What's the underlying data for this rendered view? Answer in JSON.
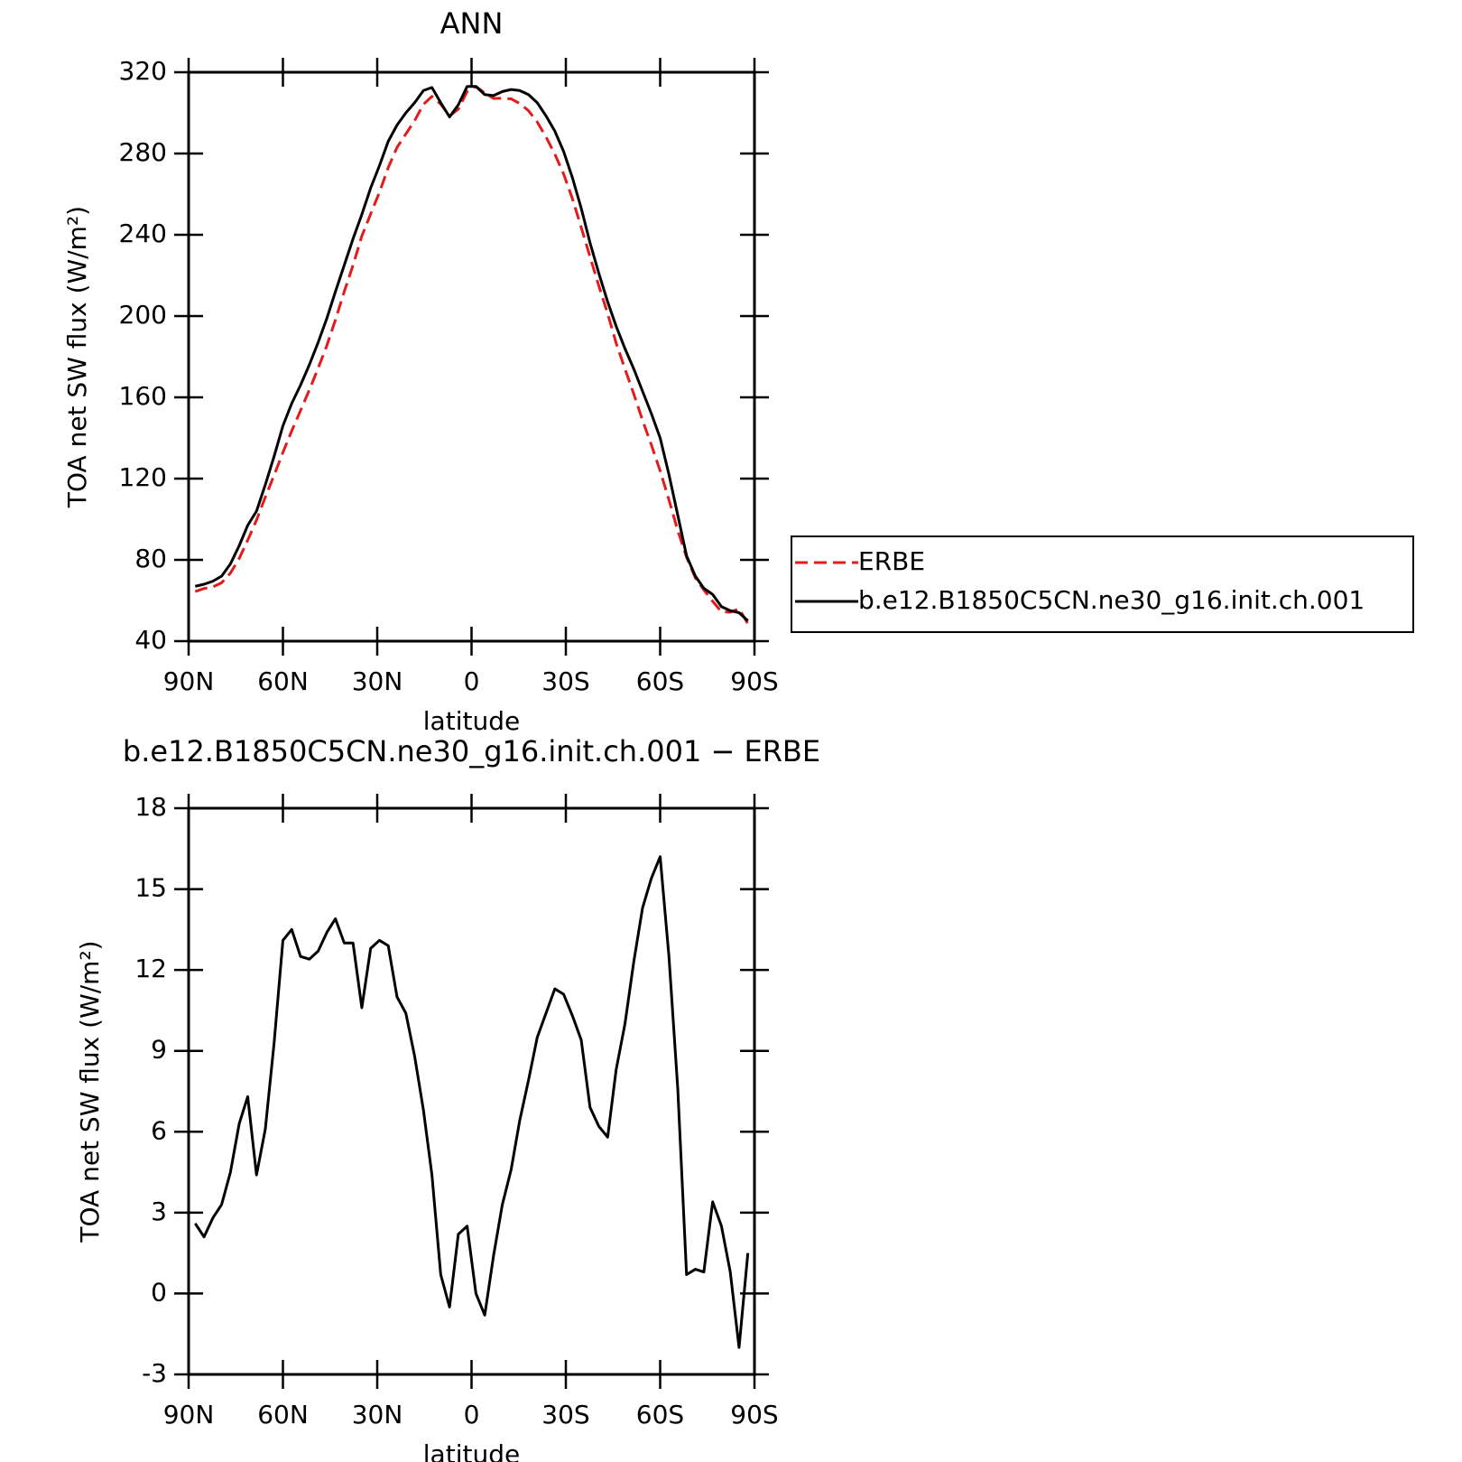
{
  "chart_data": [
    {
      "type": "line",
      "title": "ANN",
      "xlabel": "latitude",
      "ylabel": "TOA net SW flux (W/m²)",
      "x": [
        87.9,
        85.1,
        82.3,
        79.5,
        76.7,
        73.9,
        71.2,
        68.4,
        65.6,
        62.8,
        60.0,
        57.2,
        54.4,
        51.6,
        48.8,
        46.0,
        43.3,
        40.5,
        37.7,
        34.9,
        32.1,
        29.3,
        26.5,
        23.7,
        20.9,
        18.1,
        15.3,
        12.6,
        9.8,
        7.0,
        4.2,
        1.4,
        -1.4,
        -4.2,
        -7.0,
        -9.8,
        -12.6,
        -15.3,
        -18.1,
        -20.9,
        -23.7,
        -26.5,
        -29.3,
        -32.1,
        -34.9,
        -37.7,
        -40.5,
        -43.3,
        -46.0,
        -48.8,
        -51.6,
        -54.4,
        -57.2,
        -60.0,
        -62.8,
        -65.6,
        -68.4,
        -71.2,
        -73.9,
        -76.7,
        -79.5,
        -82.3,
        -85.1,
        -87.9
      ],
      "series": [
        {
          "name": "ERBE",
          "color": "#e41a1c",
          "style": "dashed",
          "values": [
            64.4,
            65.9,
            66.7,
            68.7,
            73.5,
            80.7,
            89.7,
            99.6,
            110.9,
            121.7,
            132.9,
            143.5,
            153.5,
            163.6,
            174.3,
            185.6,
            198.1,
            212,
            225,
            239.4,
            250.2,
            260.9,
            273.1,
            283,
            289.6,
            296.2,
            304.2,
            308.1,
            304.3,
            298.5,
            301.8,
            310.5,
            313,
            309.8,
            307.1,
            307.2,
            306.9,
            304.6,
            301.1,
            295.5,
            288.1,
            279.7,
            269.9,
            257.7,
            243.6,
            229.1,
            214.8,
            201.2,
            186.7,
            174,
            161.7,
            148.7,
            136.6,
            123.8,
            109.5,
            94.4,
            81.3,
            71.1,
            65.2,
            59.6,
            54.5,
            54.2,
            56,
            48.5
          ]
        },
        {
          "name": "b.e12.B1850C5CN.ne30_g16.init.ch.001",
          "color": "#000000",
          "style": "solid",
          "values": [
            67,
            68,
            69.5,
            72,
            78,
            87,
            97,
            104,
            117,
            131,
            146,
            157,
            166,
            176,
            187,
            199,
            212,
            225,
            238,
            250,
            263,
            274,
            286,
            294,
            300,
            305,
            311,
            312.5,
            305,
            298,
            304,
            313,
            313,
            309,
            308.5,
            310.5,
            311.5,
            311,
            309,
            305,
            298.5,
            291,
            281,
            268,
            253,
            236,
            221,
            207,
            195,
            184,
            174,
            163,
            152,
            140,
            122,
            102,
            82,
            72,
            66,
            63,
            57,
            55,
            54,
            50
          ]
        }
      ],
      "xlim": [
        90,
        -90
      ],
      "ylim": [
        40,
        320
      ],
      "xticks": [
        {
          "value": 90,
          "label": "90N"
        },
        {
          "value": 60,
          "label": "60N"
        },
        {
          "value": 30,
          "label": "30N"
        },
        0,
        {
          "value": -30,
          "label": "30S"
        },
        {
          "value": -60,
          "label": "60S"
        },
        {
          "value": -90,
          "label": "90S"
        }
      ],
      "yticks": [
        40,
        80,
        120,
        160,
        200,
        240,
        280,
        320
      ],
      "legend": "right"
    },
    {
      "type": "line",
      "title": "b.e12.B1850C5CN.ne30_g16.init.ch.001 − ERBE",
      "xlabel": "latitude",
      "ylabel": "TOA net SW flux (W/m²)",
      "x": [
        87.9,
        85.1,
        82.3,
        79.5,
        76.7,
        73.9,
        71.2,
        68.4,
        65.6,
        62.8,
        60.0,
        57.2,
        54.4,
        51.6,
        48.8,
        46.0,
        43.3,
        40.5,
        37.7,
        34.9,
        32.1,
        29.3,
        26.5,
        23.7,
        20.9,
        18.1,
        15.3,
        12.6,
        9.8,
        7.0,
        4.2,
        1.4,
        -1.4,
        -4.2,
        -7.0,
        -9.8,
        -12.6,
        -15.3,
        -18.1,
        -20.9,
        -23.7,
        -26.5,
        -29.3,
        -32.1,
        -34.9,
        -37.7,
        -40.5,
        -43.3,
        -46.0,
        -48.8,
        -51.6,
        -54.4,
        -57.2,
        -60.0,
        -62.8,
        -65.6,
        -68.4,
        -71.2,
        -73.9,
        -76.7,
        -79.5,
        -82.3,
        -85.1,
        -87.9
      ],
      "series": [
        {
          "color": "#000000",
          "style": "solid",
          "values": [
            2.6,
            2.1,
            2.8,
            3.3,
            4.5,
            6.3,
            7.3,
            4.4,
            6.1,
            9.3,
            13.1,
            13.5,
            12.5,
            12.4,
            12.7,
            13.4,
            13.9,
            13.0,
            13.0,
            10.6,
            12.8,
            13.1,
            12.9,
            11.0,
            10.4,
            8.8,
            6.8,
            4.4,
            0.7,
            -0.5,
            2.2,
            2.5,
            0.0,
            -0.8,
            1.4,
            3.3,
            4.6,
            6.4,
            7.9,
            9.5,
            10.4,
            11.3,
            11.1,
            10.3,
            9.4,
            6.9,
            6.2,
            5.8,
            8.3,
            10.0,
            12.3,
            14.3,
            15.4,
            16.2,
            12.5,
            7.6,
            0.7,
            0.9,
            0.8,
            3.4,
            2.5,
            0.8,
            -2.0,
            1.5
          ]
        }
      ],
      "xlim": [
        90,
        -90
      ],
      "ylim": [
        -3,
        18
      ],
      "xticks": [
        {
          "value": 90,
          "label": "90N"
        },
        {
          "value": 60,
          "label": "60N"
        },
        {
          "value": 30,
          "label": "30N"
        },
        0,
        {
          "value": -30,
          "label": "30S"
        },
        {
          "value": -60,
          "label": "60S"
        },
        {
          "value": -90,
          "label": "90S"
        }
      ],
      "yticks": [
        -3,
        0,
        3,
        6,
        9,
        12,
        15,
        18
      ]
    }
  ]
}
